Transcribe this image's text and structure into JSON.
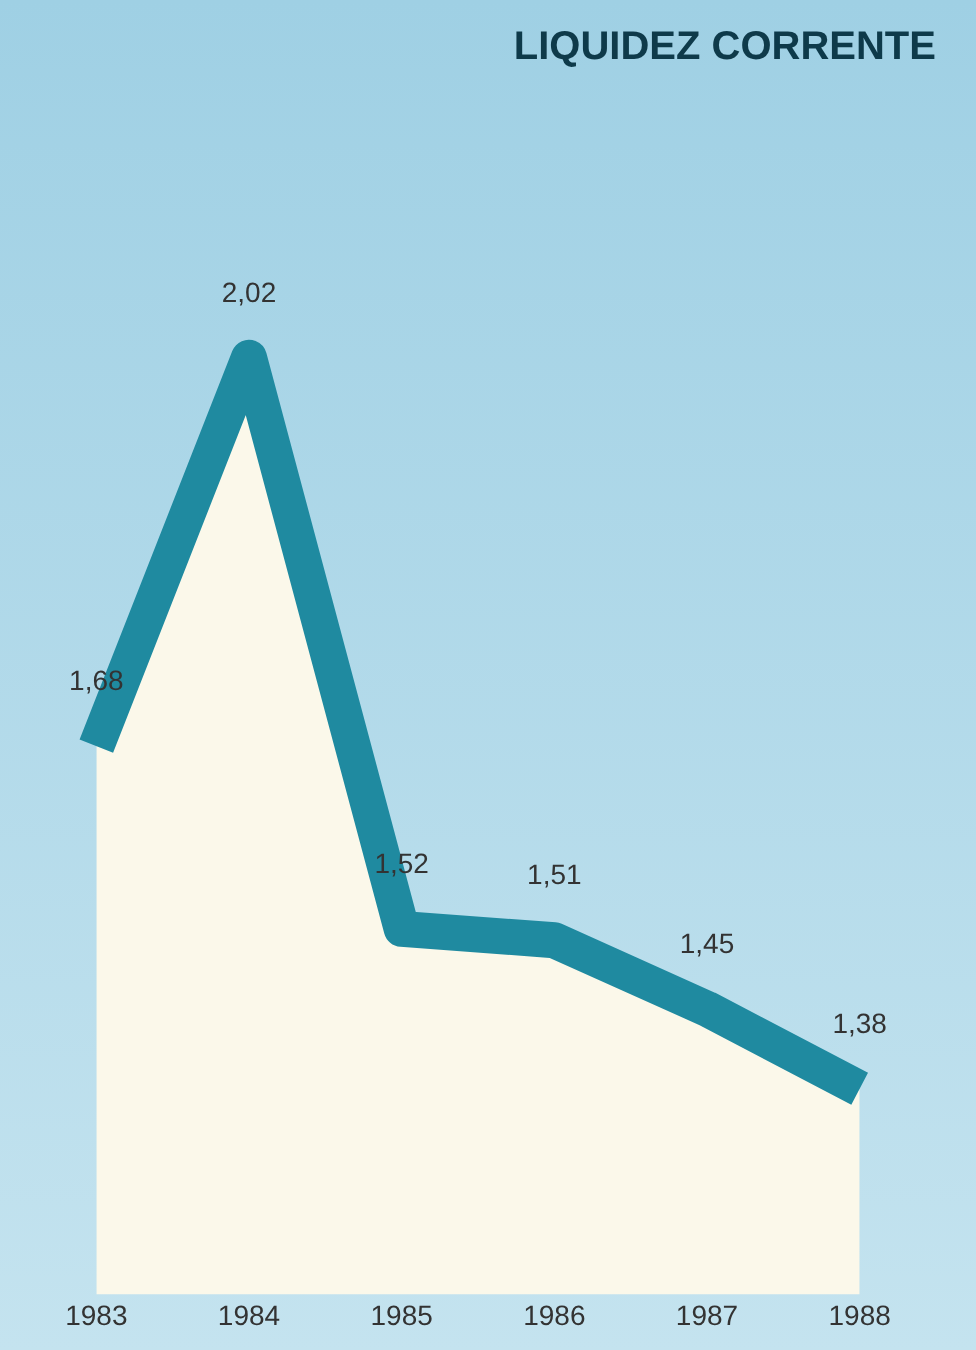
{
  "chart_data": {
    "type": "area",
    "title": "LIQUIDEZ CORRENTE",
    "categories": [
      "1983",
      "1984",
      "1985",
      "1986",
      "1987",
      "1988"
    ],
    "series": [
      {
        "color": "#1f8aa0",
        "values": [
          1.68,
          2.02,
          1.52,
          1.51,
          1.45,
          1.38
        ],
        "value_labels": [
          "1,68",
          "2,02",
          "1,52",
          "1,51",
          "1,45",
          "1,38"
        ]
      }
    ],
    "grid": false,
    "legend": false
  }
}
